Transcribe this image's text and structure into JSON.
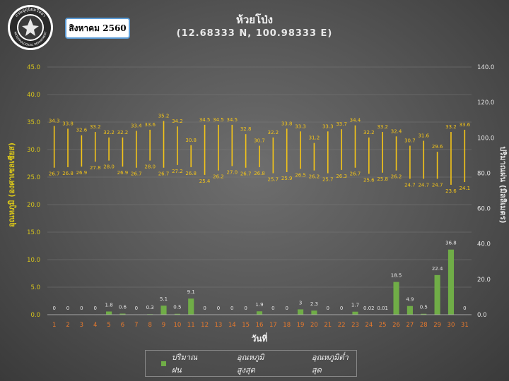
{
  "header": {
    "month": "สิงหาคม 2560",
    "station": "ห้วยโป่ง",
    "coords": "(12.68333 N, 100.98333 E)"
  },
  "logo": {
    "icon": "tmd-emblem",
    "caption": "METEOROLOGICAL DEPARTMENT"
  },
  "colors": {
    "rain": "#70ad47",
    "temp": "#f5c518",
    "axis_text": "#d9c61a",
    "day_label": "#e97a2d"
  },
  "chart_data": {
    "type": "bar",
    "xlabel": "วันที่",
    "ylabel": "อุณหภูมิ (องศาเซลเซียส)",
    "ylabel_right": "ปริมาณฝน (มิลลิเมตร)",
    "ylim": [
      0,
      45
    ],
    "ylim_right": [
      0,
      140
    ],
    "yticks": [
      "0.0",
      "5.0",
      "10.0",
      "15.0",
      "20.0",
      "25.0",
      "30.0",
      "35.0",
      "40.0",
      "45.0"
    ],
    "yticks_right": [
      "0.0",
      "20.0",
      "40.0",
      "60.0",
      "80.0",
      "100.0",
      "120.0",
      "140.0"
    ],
    "grid": true,
    "legend_position": "bottom",
    "categories": [
      "1",
      "2",
      "3",
      "4",
      "5",
      "6",
      "7",
      "8",
      "9",
      "10",
      "11",
      "12",
      "13",
      "14",
      "15",
      "16",
      "17",
      "18",
      "19",
      "20",
      "21",
      "22",
      "23",
      "24",
      "25",
      "26",
      "27",
      "28",
      "29",
      "30",
      "31"
    ],
    "series": [
      {
        "name": "ปริมาณฝน",
        "type": "bar",
        "axis": "right",
        "values": [
          0,
          0,
          0,
          0,
          1.8,
          0.6,
          0,
          0.3,
          5.1,
          0.5,
          9.1,
          0,
          0,
          0,
          0,
          1.9,
          0,
          0,
          3,
          2.3,
          0,
          0,
          1.7,
          0.02,
          0.01,
          18.5,
          4.9,
          0.5,
          22.4,
          36.8,
          0
        ],
        "labels": [
          "0",
          "0",
          "0",
          "0",
          "1.8",
          "0.6",
          "0",
          "0.3",
          "5.1",
          "0.5",
          "9.1",
          "0",
          "0",
          "0",
          "0",
          "1.9",
          "0",
          "0",
          "3",
          "2.3",
          "0",
          "0",
          "1.7",
          "0.02",
          "0.01",
          "18.5",
          "4.9",
          "0.5",
          "22.4",
          "36.8",
          "0"
        ]
      },
      {
        "name": "อุณหภูมิสูงสุด",
        "type": "range-top",
        "values": [
          34.3,
          33.8,
          32.6,
          33.2,
          32.2,
          32.2,
          33.4,
          33.6,
          35.2,
          34.2,
          30.8,
          34.5,
          34.5,
          34.5,
          32.8,
          30.7,
          32.2,
          33.8,
          33.3,
          31.2,
          33.3,
          33.7,
          34.4,
          32.2,
          33.2,
          32.4,
          30.7,
          31.6,
          29.6,
          33.2,
          33.6
        ],
        "labels": [
          "34.3",
          "33.8",
          "32.6",
          "33.2",
          "32.2",
          "32.2",
          "33.4",
          "33.6",
          "35.2",
          "34.2",
          "30.8",
          "34.5",
          "34.5",
          "34.5",
          "32.8",
          "30.7",
          "32.2",
          "33.8",
          "33.3",
          "31.2",
          "33.3",
          "33.7",
          "34.4",
          "32.2",
          "33.2",
          "32.4",
          "30.7",
          "31.6",
          "29.6",
          "33.2",
          "33.6"
        ]
      },
      {
        "name": "อุณหภูมิต่ำสุด",
        "type": "range-bottom",
        "values": [
          26.7,
          26.8,
          26.9,
          27.8,
          28.0,
          26.9,
          26.7,
          28.0,
          26.7,
          27.2,
          26.8,
          25.4,
          26.2,
          27.0,
          26.7,
          26.8,
          25.7,
          25.9,
          26.5,
          26.2,
          25.7,
          26.3,
          26.7,
          25.6,
          25.8,
          26.2,
          24.7,
          24.7,
          24.7,
          23.6,
          24.1
        ],
        "labels": [
          "26.7",
          "26.8",
          "26.9",
          "27.8",
          "28.0",
          "26.9",
          "26.7",
          "28.0",
          "26.7",
          "27.2",
          "26.8",
          "25.4",
          "26.2",
          "27.0",
          "26.7",
          "26.8",
          "25.7",
          "25.9",
          "26.5",
          "26.2",
          "25.7",
          "26.3",
          "26.7",
          "25.6",
          "25.8",
          "26.2",
          "24.7",
          "24.7",
          "24.7",
          "23.6",
          "24.1"
        ]
      }
    ]
  }
}
